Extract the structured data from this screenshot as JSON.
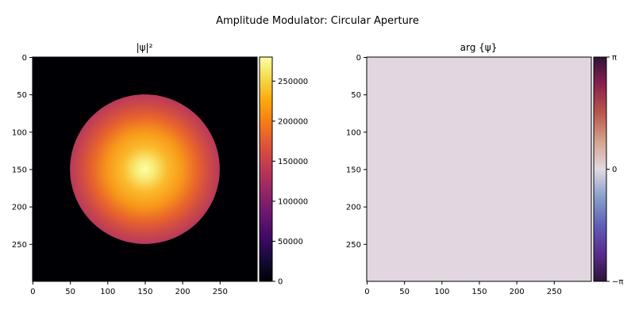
{
  "figure": {
    "suptitle": "Amplitude Modulator: Circular Aperture"
  },
  "chart_data": [
    {
      "type": "heatmap",
      "title": "|ψ|²",
      "colormap": "inferno",
      "image_size": [
        300,
        300
      ],
      "xlim": [
        0,
        299
      ],
      "ylim": [
        299,
        0
      ],
      "xticks": [
        0,
        50,
        100,
        150,
        200,
        250
      ],
      "yticks": [
        0,
        50,
        100,
        150,
        200,
        250
      ],
      "field": {
        "shape": "circular aperture with Gaussian-like profile",
        "center": [
          150,
          150
        ],
        "aperture_radius": 100,
        "peak_value": 280000,
        "edge_value": 110000,
        "outside_value": 0
      },
      "colorbar": {
        "vmin": 0,
        "vmax": 280000,
        "ticks": [
          0,
          50000,
          100000,
          150000,
          200000,
          250000
        ],
        "tick_labels": [
          "0",
          "50000",
          "100000",
          "150000",
          "200000",
          "250000"
        ]
      }
    },
    {
      "type": "heatmap",
      "title": "arg {ψ}",
      "colormap": "twilight_shifted",
      "image_size": [
        300,
        300
      ],
      "xlim": [
        0,
        299
      ],
      "ylim": [
        299,
        0
      ],
      "xticks": [
        0,
        50,
        100,
        150,
        200,
        250
      ],
      "yticks": [
        0,
        50,
        100,
        150,
        200,
        250
      ],
      "field": {
        "shape": "uniform",
        "value": 0,
        "fill_color": "#e2d6e1"
      },
      "colorbar": {
        "vmin": -3.14159,
        "vmax": 3.14159,
        "ticks": [
          -3.14159,
          0,
          3.14159
        ],
        "tick_labels": [
          "−π",
          "0",
          "π"
        ]
      }
    }
  ]
}
